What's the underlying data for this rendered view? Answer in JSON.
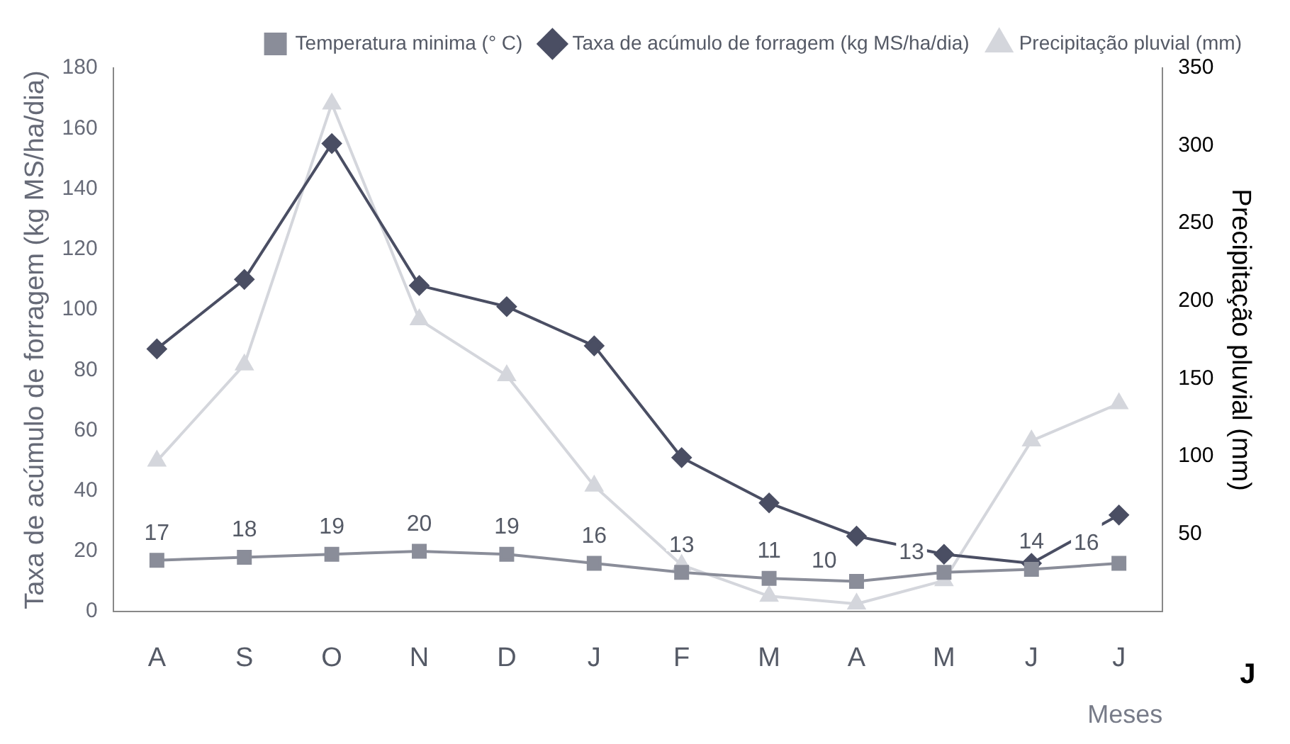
{
  "chart_data": {
    "type": "line",
    "categories": [
      "A",
      "S",
      "O",
      "N",
      "D",
      "J",
      "F",
      "M",
      "A",
      "M",
      "J",
      "J"
    ],
    "series": [
      {
        "name": "Temperatura minima (° C)",
        "color": "#8a8d99",
        "marker": "square",
        "values": [
          17,
          18,
          19,
          20,
          19,
          16,
          13,
          11,
          10,
          13,
          14,
          16
        ],
        "value_labels": [
          "17",
          "18",
          "19",
          "20",
          "19",
          "16",
          "13",
          "11",
          "10",
          "13",
          "14",
          "16"
        ]
      },
      {
        "name": "Taxa de acúmulo de forragem (kg MS/ha/dia)",
        "color": "#4a4e63",
        "marker": "diamond",
        "values": [
          87,
          110,
          155,
          108,
          101,
          88,
          51,
          36,
          25,
          19,
          16,
          32
        ]
      },
      {
        "name": "Precipitação pluvial (mm)",
        "color": "#d4d6dc",
        "marker": "triangle",
        "axis": "y2",
        "values": [
          97,
          159,
          327,
          188,
          152,
          81,
          30,
          10,
          5,
          20,
          110,
          134
        ]
      }
    ],
    "xlabel": "Meses",
    "ylabel": "Taxa de acúmulo de forragem (kg MS/ha/dia)",
    "y2label": "Precipitação pluvial (mm)",
    "ylim": [
      0,
      180
    ],
    "yticks": [
      0,
      20,
      40,
      60,
      80,
      100,
      120,
      140,
      160,
      180
    ],
    "y2lim": [
      0,
      350
    ],
    "y2ticks": [
      50,
      100,
      150,
      200,
      250,
      300,
      350
    ],
    "grid": false,
    "legend": "top right",
    "annotations": [
      "J"
    ]
  }
}
